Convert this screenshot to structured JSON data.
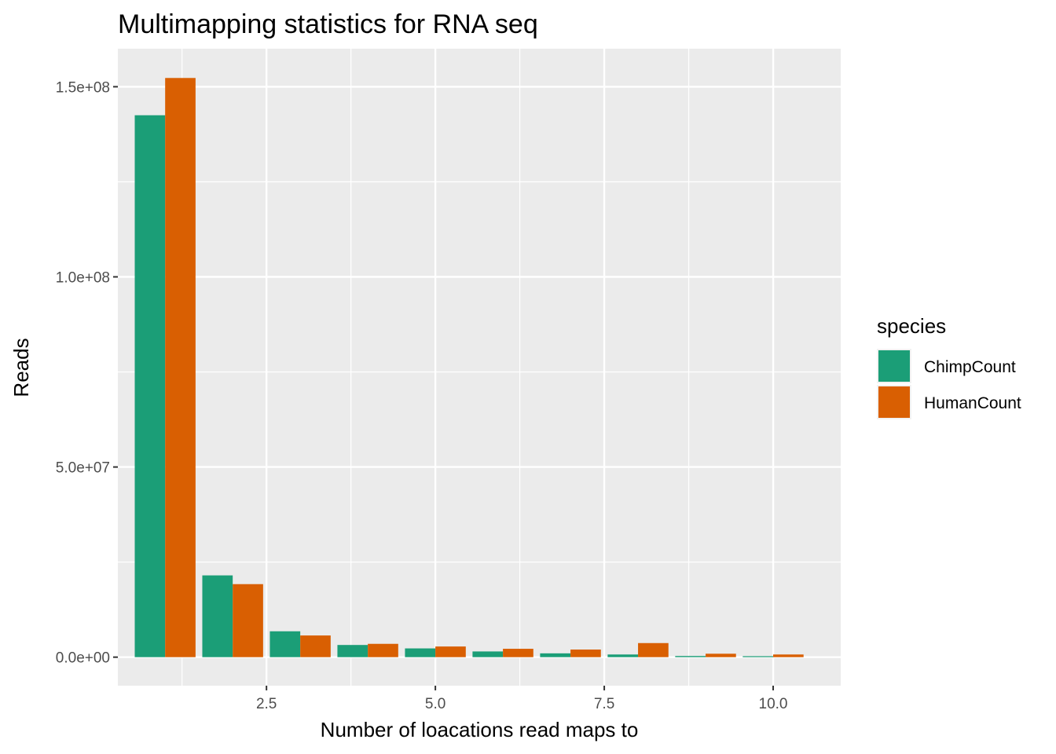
{
  "chart_data": {
    "type": "bar",
    "title": "Multimapping statistics for RNA seq",
    "xlabel": "Number of loacations read maps to",
    "ylabel": "Reads",
    "x": [
      1,
      2,
      3,
      4,
      5,
      6,
      7,
      8,
      9,
      10
    ],
    "series": [
      {
        "name": "ChimpCount",
        "color": "#1B9E77",
        "values": [
          142500000,
          21500000,
          6800000,
          3200000,
          2300000,
          1500000,
          1000000,
          700000,
          300000,
          250000
        ]
      },
      {
        "name": "HumanCount",
        "color": "#D95F02",
        "values": [
          152300000,
          19200000,
          5700000,
          3500000,
          2800000,
          2200000,
          2000000,
          3700000,
          900000,
          700000
        ]
      }
    ],
    "xlim": [
      0.3,
      11.0
    ],
    "ylim": [
      -7500000,
      160000000
    ],
    "x_ticks": [
      {
        "value": 2.5,
        "label": "2.5"
      },
      {
        "value": 5.0,
        "label": "5.0"
      },
      {
        "value": 7.5,
        "label": "7.5"
      },
      {
        "value": 10.0,
        "label": "10.0"
      }
    ],
    "x_minor_ticks": [
      1.25,
      3.75,
      6.25,
      8.75
    ],
    "y_ticks": [
      {
        "value": 0,
        "label": "0.0e+00"
      },
      {
        "value": 50000000,
        "label": "5.0e+07"
      },
      {
        "value": 100000000,
        "label": "1.0e+08"
      },
      {
        "value": 150000000,
        "label": "1.5e+08"
      }
    ],
    "y_minor_ticks": [
      25000000,
      75000000,
      125000000
    ],
    "legend": {
      "title": "species",
      "position": "right"
    },
    "grid": true,
    "panel_background": "#EBEBEB"
  }
}
